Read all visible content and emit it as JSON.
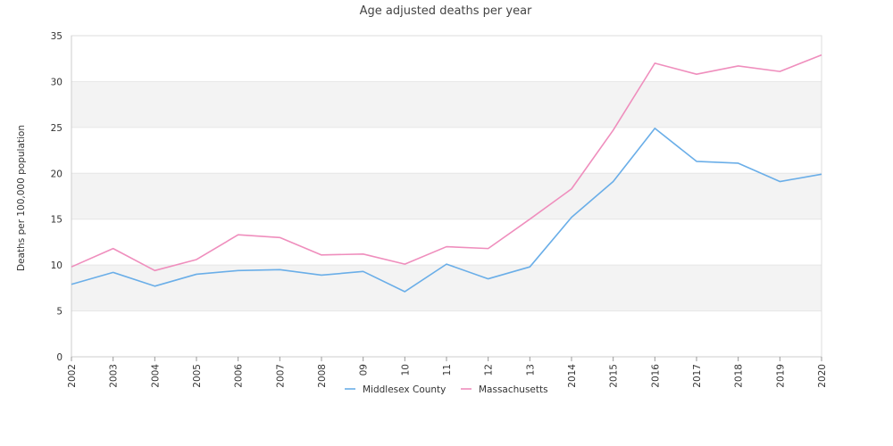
{
  "chart_data": {
    "type": "line",
    "title": "Age adjusted deaths per year",
    "xlabel": "",
    "ylabel": "Deaths per 100,000 population",
    "categories": [
      "2002",
      "2003",
      "2004",
      "2005",
      "2006",
      "2007",
      "2008",
      "09",
      "10",
      "11",
      "12",
      "13",
      "2014",
      "2015",
      "2016",
      "2017",
      "2018",
      "2019",
      "2020"
    ],
    "ylim": [
      0,
      35
    ],
    "yticks": [
      0,
      5,
      10,
      15,
      20,
      25,
      30,
      35
    ],
    "grid": true,
    "banded_background": true,
    "legend_position": "bottom-center",
    "series": [
      {
        "name": "Middlesex County",
        "color": "#6aaee8",
        "values": [
          7.9,
          9.2,
          7.7,
          9.0,
          9.4,
          9.5,
          8.9,
          9.3,
          7.1,
          10.1,
          8.5,
          9.8,
          15.2,
          19.1,
          24.9,
          21.3,
          21.1,
          19.1,
          19.9
        ]
      },
      {
        "name": "Massachusetts",
        "color": "#ef8ebd",
        "values": [
          9.8,
          11.8,
          9.4,
          10.6,
          13.3,
          13.0,
          11.1,
          11.2,
          10.1,
          12.0,
          11.8,
          15.0,
          18.3,
          24.7,
          32.0,
          30.8,
          31.7,
          31.1,
          32.9
        ]
      }
    ]
  }
}
